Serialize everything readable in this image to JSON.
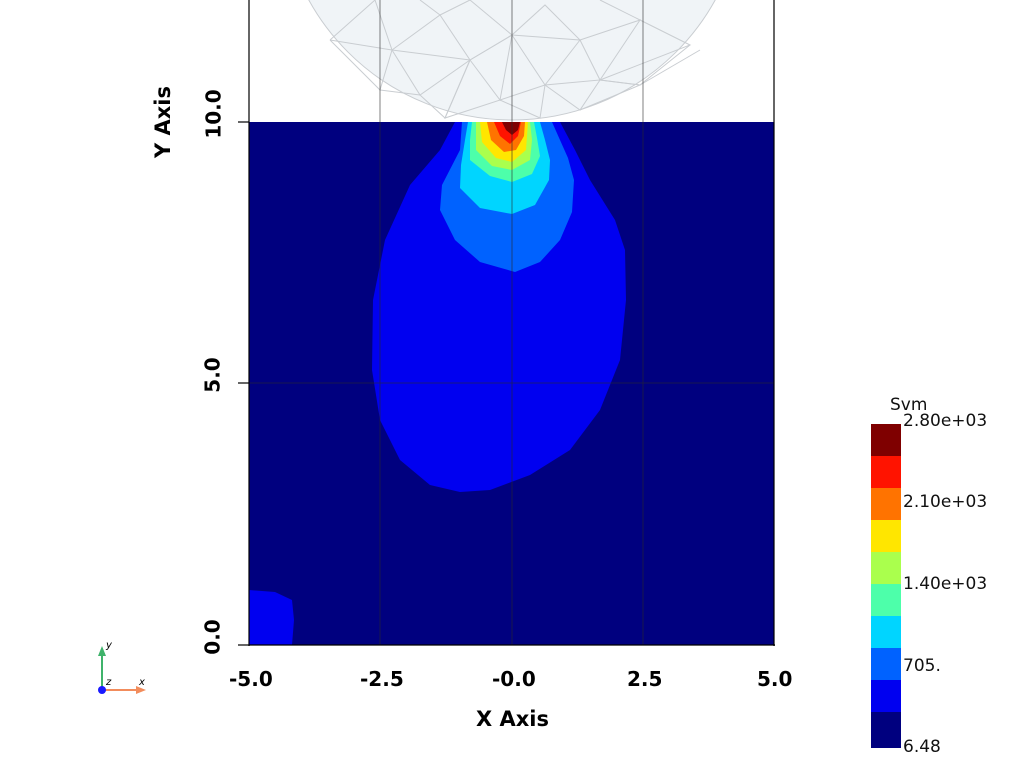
{
  "chart_data": {
    "type": "heatmap",
    "xlabel": "X Axis",
    "ylabel": "Y Axis",
    "xlim": [
      -5.0,
      5.0
    ],
    "ylim": [
      0.0,
      10.0
    ],
    "x_ticks": [
      "-5.0",
      "-2.5",
      "-0.0",
      "2.5",
      "5.0"
    ],
    "y_ticks": [
      "0.0",
      "5.0",
      "10.0"
    ],
    "grid": true,
    "colorbar": {
      "title": "Svm",
      "range": [
        6.48,
        2800
      ],
      "labels": [
        "2.80e+03",
        "2.10e+03",
        "1.40e+03",
        "705.",
        "6.48"
      ],
      "levels": 10,
      "colors": [
        "#00007f",
        "#0000f0",
        "#0062ff",
        "#00d5ff",
        "#4dffaa",
        "#aaff4d",
        "#ffe600",
        "#ff7300",
        "#ff1300",
        "#7f0000"
      ]
    },
    "contact_body": {
      "shape": "circle-segment",
      "color": "#f0f4f7",
      "mesh_color": "#c9cdd1"
    }
  },
  "orientation_triad": {
    "x": "x",
    "y": "y",
    "z": "z"
  }
}
